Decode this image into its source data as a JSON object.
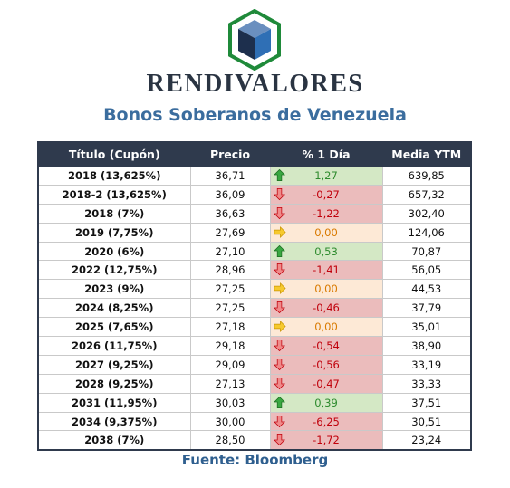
{
  "brand": "RENDIVALORES",
  "title": "Bonos Soberanos de Venezuela",
  "source": "Fuente: Bloomberg",
  "colors": {
    "up": "#2e8b2e",
    "down": "#c0000b",
    "flat": "#d97a00",
    "header": "#2f3a4d",
    "title": "#3b6d9e"
  },
  "table": {
    "headers": [
      "Título (Cupón)",
      "Precio",
      "% 1 Día",
      "Media YTM"
    ],
    "rows": [
      {
        "name": "2018 (13,625%)",
        "price": "36,71",
        "change": "1,27",
        "dir": "up",
        "ytm": "639,85"
      },
      {
        "name": "2018-2 (13,625%)",
        "price": "36,09",
        "change": "-0,27",
        "dir": "down",
        "ytm": "657,32"
      },
      {
        "name": "2018 (7%)",
        "price": "36,63",
        "change": "-1,22",
        "dir": "down",
        "ytm": "302,40"
      },
      {
        "name": "2019 (7,75%)",
        "price": "27,69",
        "change": "0,00",
        "dir": "flat",
        "ytm": "124,06"
      },
      {
        "name": "2020 (6%)",
        "price": "27,10",
        "change": "0,53",
        "dir": "up",
        "ytm": "70,87"
      },
      {
        "name": "2022 (12,75%)",
        "price": "28,96",
        "change": "-1,41",
        "dir": "down",
        "ytm": "56,05"
      },
      {
        "name": "2023 (9%)",
        "price": "27,25",
        "change": "0,00",
        "dir": "flat",
        "ytm": "44,53"
      },
      {
        "name": "2024 (8,25%)",
        "price": "27,25",
        "change": "-0,46",
        "dir": "down",
        "ytm": "37,79"
      },
      {
        "name": "2025 (7,65%)",
        "price": "27,18",
        "change": "0,00",
        "dir": "flat",
        "ytm": "35,01"
      },
      {
        "name": "2026 (11,75%)",
        "price": "29,18",
        "change": "-0,54",
        "dir": "down",
        "ytm": "38,90"
      },
      {
        "name": "2027 (9,25%)",
        "price": "29,09",
        "change": "-0,56",
        "dir": "down",
        "ytm": "33,19"
      },
      {
        "name": "2028 (9,25%)",
        "price": "27,13",
        "change": "-0,47",
        "dir": "down",
        "ytm": "33,33"
      },
      {
        "name": "2031 (11,95%)",
        "price": "30,03",
        "change": "0,39",
        "dir": "up",
        "ytm": "37,51"
      },
      {
        "name": "2034 (9,375%)",
        "price": "30,00",
        "change": "-6,25",
        "dir": "down",
        "ytm": "30,51"
      },
      {
        "name": "2038 (7%)",
        "price": "28,50",
        "change": "-1,72",
        "dir": "down",
        "ytm": "23,24"
      }
    ]
  }
}
